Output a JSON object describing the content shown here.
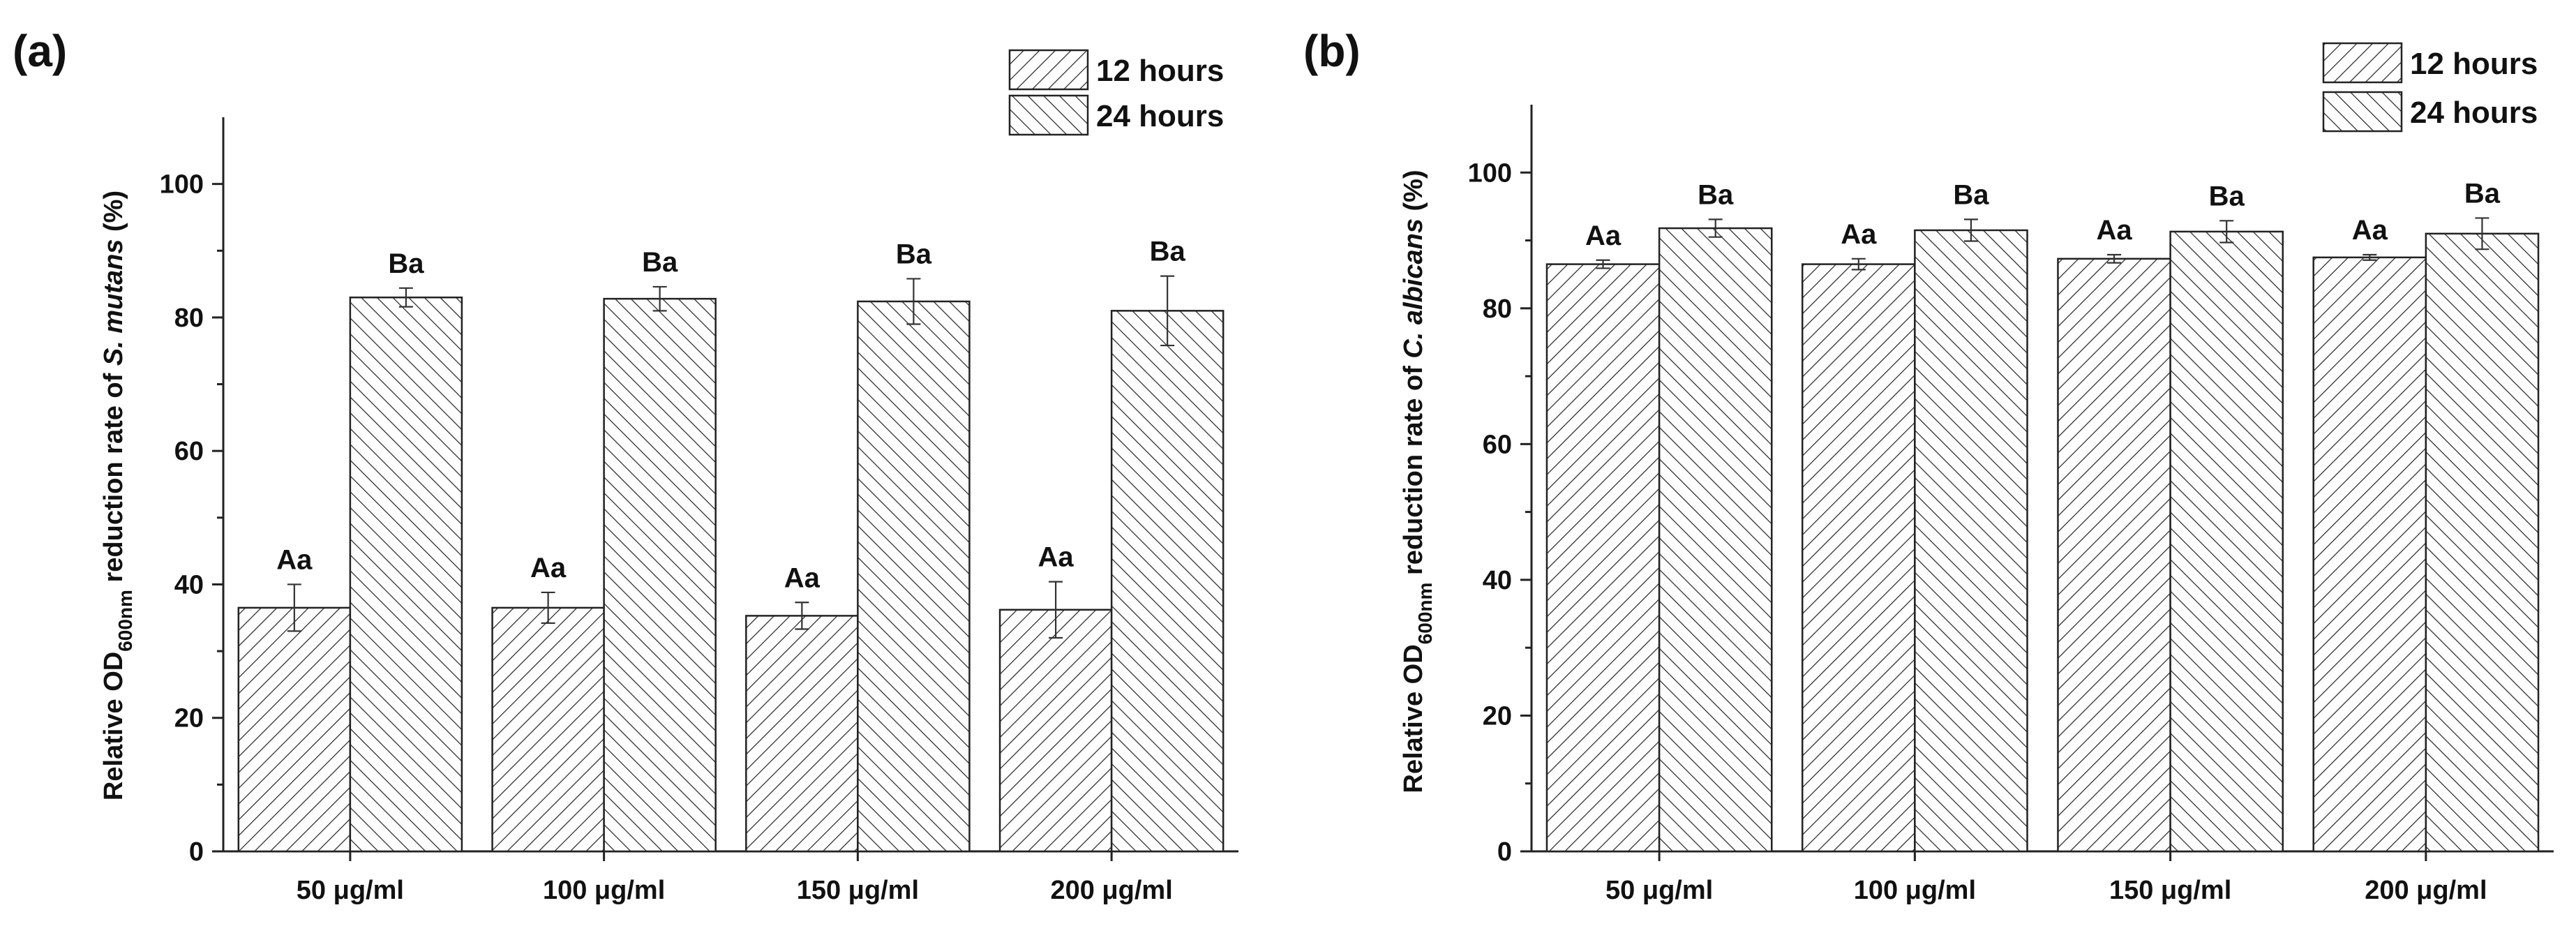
{
  "chart_data": [
    {
      "type": "bar",
      "panel_label": "(a)",
      "categories": [
        "50 μg/ml",
        "100 μg/ml",
        "150 μg/ml",
        "200 μg/ml"
      ],
      "series": [
        {
          "name": "12 hours",
          "values": [
            36.5,
            36.5,
            35.3,
            36.2
          ],
          "errors": [
            3.5,
            2.3,
            2.0,
            4.2
          ],
          "labels": [
            "Aa",
            "Aa",
            "Aa",
            "Aa"
          ],
          "pattern": "hatch-forward"
        },
        {
          "name": "24 hours",
          "values": [
            83.0,
            82.8,
            82.4,
            81.0
          ],
          "errors": [
            1.4,
            1.8,
            3.4,
            5.2
          ],
          "labels": [
            "Ba",
            "Ba",
            "Ba",
            "Ba"
          ],
          "pattern": "hatch-back"
        }
      ],
      "ylabel_pre": "Relative OD",
      "ylabel_sub": "600nm",
      "ylabel_mid": " reduction rate of ",
      "ylabel_species": "S. mutans",
      "ylabel_post": " (%)",
      "ylim": [
        0,
        110
      ],
      "yticks": [
        "0",
        "20",
        "40",
        "60",
        "80",
        "100"
      ],
      "ytick_values": [
        0,
        20,
        40,
        60,
        80,
        100
      ],
      "legend_position": "top-right"
    },
    {
      "type": "bar",
      "panel_label": "(b)",
      "categories": [
        "50 μg/ml",
        "100 μg/ml",
        "150 μg/ml",
        "200 μg/ml"
      ],
      "series": [
        {
          "name": "12 hours",
          "values": [
            86.5,
            86.5,
            87.3,
            87.5
          ],
          "errors": [
            0.6,
            0.8,
            0.6,
            0.4
          ],
          "labels": [
            "Aa",
            "Aa",
            "Aa",
            "Aa"
          ],
          "pattern": "hatch-forward"
        },
        {
          "name": "24 hours",
          "values": [
            91.8,
            91.5,
            91.3,
            91.0
          ],
          "errors": [
            1.3,
            1.6,
            1.6,
            2.3
          ],
          "labels": [
            "Ba",
            "Ba",
            "Ba",
            "Ba"
          ],
          "pattern": "hatch-back"
        }
      ],
      "ylabel_pre": "Relative OD",
      "ylabel_sub": "600nm",
      "ylabel_mid": " reduction rate of ",
      "ylabel_species": "C. albicans",
      "ylabel_post": " (%)",
      "ylim": [
        0,
        110
      ],
      "yticks": [
        "0",
        "20",
        "40",
        "60",
        "80",
        "100"
      ],
      "ytick_values": [
        0,
        20,
        40,
        60,
        80,
        100
      ],
      "legend_position": "top-right"
    }
  ]
}
